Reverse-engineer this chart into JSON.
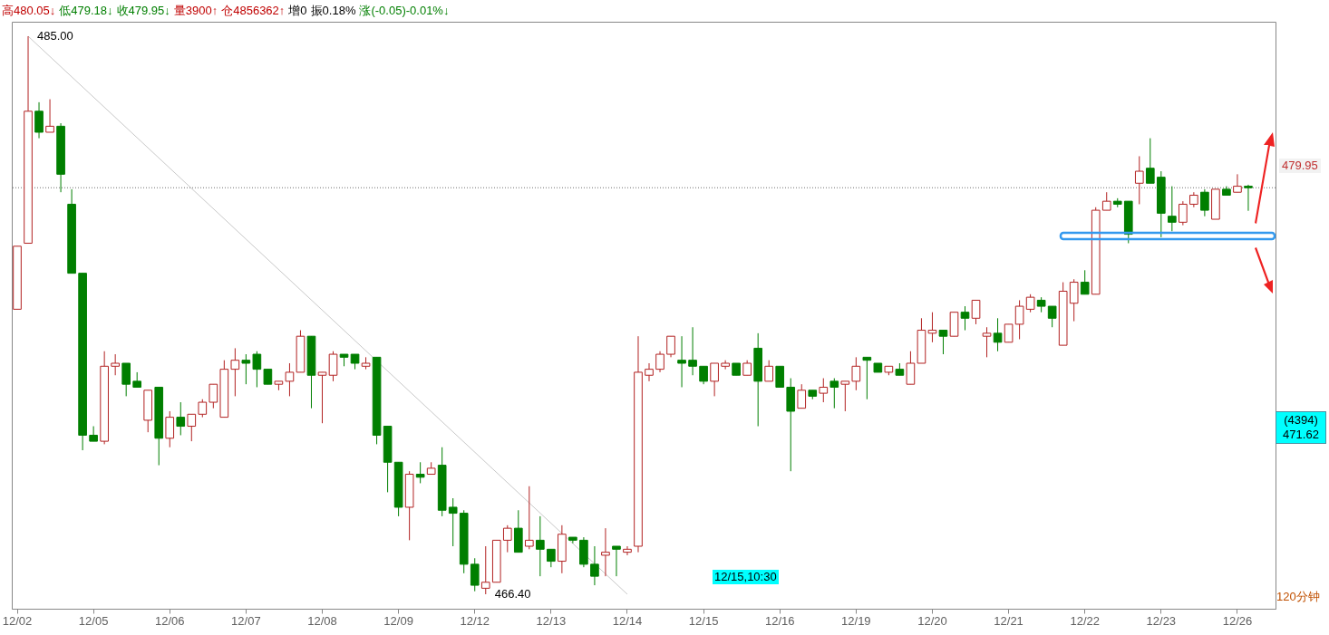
{
  "chart_data": {
    "type": "candlestick",
    "categories": [
      "12/02",
      null,
      null,
      null,
      null,
      null,
      null,
      "12/05",
      null,
      null,
      null,
      null,
      null,
      null,
      "12/06",
      null,
      null,
      null,
      null,
      null,
      null,
      "12/07",
      null,
      null,
      null,
      null,
      null,
      null,
      "12/08",
      null,
      null,
      null,
      null,
      null,
      null,
      "12/09",
      null,
      null,
      null,
      null,
      null,
      null,
      "12/12",
      null,
      null,
      null,
      null,
      null,
      null,
      "12/13",
      null,
      null,
      null,
      null,
      null,
      null,
      "12/14",
      null,
      null,
      null,
      null,
      null,
      null,
      "12/15",
      null,
      null,
      null,
      null,
      null,
      null,
      "12/16",
      null,
      null,
      null,
      null,
      null,
      null,
      "12/19",
      null,
      null,
      null,
      null,
      null,
      null,
      "12/20",
      null,
      null,
      null,
      null,
      null,
      null,
      "12/21",
      null,
      null,
      null,
      null,
      null,
      null,
      "12/22",
      null,
      null,
      null,
      null,
      null,
      null,
      "12/23",
      null,
      null,
      null,
      null,
      null,
      null,
      "12/26",
      null
    ],
    "ohlc": [
      [
        475.9,
        478.0,
        475.9,
        478.0
      ],
      [
        478.1,
        485.0,
        478.1,
        482.5
      ],
      [
        482.5,
        482.8,
        481.6,
        481.8
      ],
      [
        481.8,
        482.9,
        481.8,
        482.0
      ],
      [
        482.0,
        482.1,
        479.8,
        480.4
      ],
      [
        479.4,
        479.9,
        477.1,
        477.1
      ],
      [
        477.1,
        477.1,
        471.2,
        471.7
      ],
      [
        471.7,
        472.0,
        471.5,
        471.5
      ],
      [
        471.5,
        474.5,
        471.4,
        474.0
      ],
      [
        474.0,
        474.4,
        473.7,
        474.1
      ],
      [
        474.1,
        474.1,
        473.0,
        473.4
      ],
      [
        473.5,
        473.8,
        473.3,
        473.3
      ],
      [
        472.2,
        473.2,
        471.8,
        473.2
      ],
      [
        473.3,
        473.3,
        470.7,
        471.6
      ],
      [
        471.6,
        472.5,
        471.3,
        472.3
      ],
      [
        472.3,
        472.8,
        471.7,
        472.0
      ],
      [
        472.0,
        472.4,
        471.5,
        472.4
      ],
      [
        472.4,
        472.9,
        472.3,
        472.8
      ],
      [
        472.8,
        473.4,
        472.6,
        473.4
      ],
      [
        472.3,
        474.2,
        472.3,
        473.9
      ],
      [
        473.9,
        474.6,
        473.0,
        474.2
      ],
      [
        474.2,
        474.4,
        473.4,
        474.1
      ],
      [
        474.4,
        474.5,
        473.3,
        473.9
      ],
      [
        473.9,
        473.9,
        473.4,
        473.4
      ],
      [
        473.4,
        473.5,
        473.2,
        473.5
      ],
      [
        473.5,
        474.1,
        473.0,
        473.8
      ],
      [
        473.8,
        475.2,
        473.8,
        475.0
      ],
      [
        475.0,
        475.0,
        472.6,
        473.7
      ],
      [
        473.7,
        473.8,
        472.1,
        473.8
      ],
      [
        473.7,
        474.5,
        473.5,
        474.4
      ],
      [
        474.4,
        474.4,
        474.0,
        474.3
      ],
      [
        474.4,
        474.4,
        473.9,
        474.1
      ],
      [
        474.0,
        474.3,
        473.9,
        474.1
      ],
      [
        474.3,
        474.3,
        471.4,
        471.7
      ],
      [
        472.0,
        472.0,
        469.8,
        470.8
      ],
      [
        470.8,
        470.8,
        469.0,
        469.3
      ],
      [
        469.3,
        470.5,
        468.2,
        470.4
      ],
      [
        470.4,
        470.8,
        470.1,
        470.3
      ],
      [
        470.4,
        470.8,
        470.4,
        470.6
      ],
      [
        470.7,
        471.3,
        469.0,
        469.2
      ],
      [
        469.3,
        469.6,
        468.0,
        469.1
      ],
      [
        469.1,
        469.2,
        467.1,
        467.4
      ],
      [
        467.4,
        467.6,
        466.5,
        466.7
      ],
      [
        466.6,
        468.0,
        466.4,
        466.8
      ],
      [
        466.8,
        468.2,
        466.8,
        468.2
      ],
      [
        468.2,
        468.7,
        467.8,
        468.6
      ],
      [
        468.6,
        469.2,
        467.8,
        467.8
      ],
      [
        468.0,
        470.0,
        467.9,
        468.2
      ],
      [
        468.2,
        469.0,
        467.0,
        467.9
      ],
      [
        467.9,
        467.9,
        467.3,
        467.5
      ],
      [
        467.5,
        468.7,
        467.1,
        468.4
      ],
      [
        468.3,
        468.3,
        468.1,
        468.2
      ],
      [
        468.2,
        468.3,
        467.3,
        467.4
      ],
      [
        467.4,
        468.0,
        466.7,
        467.0
      ],
      [
        467.7,
        468.6,
        467.0,
        467.8
      ],
      [
        468.0,
        468.0,
        467.0,
        467.9
      ],
      [
        467.8,
        468.0,
        467.7,
        467.9
      ],
      [
        468.0,
        475.0,
        467.8,
        473.8
      ],
      [
        473.7,
        474.1,
        473.5,
        473.9
      ],
      [
        473.9,
        474.5,
        473.8,
        474.4
      ],
      [
        474.4,
        475.0,
        474.3,
        475.0
      ],
      [
        474.2,
        475.0,
        473.3,
        474.1
      ],
      [
        474.2,
        475.3,
        473.7,
        474.0
      ],
      [
        474.0,
        474.0,
        473.4,
        473.5
      ],
      [
        473.5,
        474.1,
        473.0,
        474.1
      ],
      [
        474.0,
        474.2,
        473.9,
        474.1
      ],
      [
        474.1,
        474.1,
        473.7,
        473.7
      ],
      [
        473.7,
        474.2,
        473.7,
        474.1
      ],
      [
        474.6,
        475.1,
        472.0,
        473.5
      ],
      [
        473.5,
        474.2,
        473.5,
        474.0
      ],
      [
        474.0,
        474.0,
        473.3,
        473.3
      ],
      [
        473.3,
        473.6,
        470.5,
        472.5
      ],
      [
        472.6,
        473.4,
        472.6,
        473.2
      ],
      [
        473.2,
        473.2,
        472.9,
        473.0
      ],
      [
        473.1,
        473.6,
        472.8,
        473.3
      ],
      [
        473.5,
        473.6,
        472.6,
        473.3
      ],
      [
        473.4,
        473.5,
        472.5,
        473.5
      ],
      [
        473.5,
        474.3,
        473.2,
        474.0
      ],
      [
        474.3,
        474.3,
        472.9,
        474.2
      ],
      [
        474.1,
        474.1,
        473.8,
        473.8
      ],
      [
        473.8,
        474.0,
        473.7,
        474.0
      ],
      [
        473.9,
        474.1,
        473.7,
        473.7
      ],
      [
        473.4,
        474.5,
        473.4,
        474.1
      ],
      [
        474.1,
        475.6,
        474.1,
        475.2
      ],
      [
        475.1,
        475.8,
        474.8,
        475.2
      ],
      [
        475.2,
        475.2,
        474.4,
        475.0
      ],
      [
        475.0,
        475.8,
        475.0,
        475.8
      ],
      [
        475.8,
        476.0,
        475.2,
        475.6
      ],
      [
        475.6,
        476.2,
        475.4,
        476.2
      ],
      [
        475.0,
        475.3,
        474.3,
        475.1
      ],
      [
        475.1,
        475.6,
        474.5,
        474.8
      ],
      [
        474.8,
        475.4,
        474.8,
        475.4
      ],
      [
        475.4,
        476.2,
        474.9,
        476.0
      ],
      [
        475.9,
        476.4,
        475.8,
        476.3
      ],
      [
        476.2,
        476.3,
        475.8,
        476.0
      ],
      [
        476.0,
        476.0,
        475.3,
        475.6
      ],
      [
        474.7,
        476.8,
        474.7,
        476.5
      ],
      [
        476.1,
        476.9,
        475.5,
        476.8
      ],
      [
        476.8,
        477.2,
        476.4,
        476.4
      ],
      [
        476.4,
        479.3,
        476.4,
        479.2
      ],
      [
        479.2,
        479.8,
        479.2,
        479.5
      ],
      [
        479.5,
        479.6,
        479.3,
        479.4
      ],
      [
        479.5,
        479.5,
        478.1,
        478.4
      ],
      [
        480.1,
        481.0,
        479.4,
        480.5
      ],
      [
        480.6,
        481.6,
        480.1,
        480.1
      ],
      [
        480.3,
        480.5,
        478.3,
        479.1
      ],
      [
        479.0,
        480.0,
        478.5,
        478.8
      ],
      [
        478.8,
        479.5,
        478.7,
        479.4
      ],
      [
        479.4,
        479.8,
        479.3,
        479.7
      ],
      [
        479.8,
        479.9,
        479.0,
        479.2
      ],
      [
        478.9,
        479.9,
        478.9,
        479.9
      ],
      [
        479.9,
        480.0,
        479.7,
        479.7
      ],
      [
        479.8,
        480.4,
        479.8,
        480.0
      ],
      [
        480.0,
        480.05,
        479.18,
        479.95
      ]
    ],
    "colors": [
      "#b22222",
      "#b22222",
      "#007f00",
      "#b22222",
      "#007f00",
      "#007f00",
      "#007f00",
      "#007f00",
      "#b22222",
      "#b22222",
      "#007f00",
      "#007f00",
      "#b22222",
      "#007f00",
      "#b22222",
      "#007f00",
      "#b22222",
      "#b22222",
      "#b22222",
      "#b22222",
      "#b22222",
      "#007f00",
      "#007f00",
      "#007f00",
      "#b22222",
      "#b22222",
      "#b22222",
      "#007f00",
      "#b22222",
      "#b22222",
      "#007f00",
      "#007f00",
      "#b22222",
      "#007f00",
      "#007f00",
      "#007f00",
      "#b22222",
      "#007f00",
      "#b22222",
      "#007f00",
      "#007f00",
      "#007f00",
      "#007f00",
      "#b22222",
      "#b22222",
      "#b22222",
      "#007f00",
      "#b22222",
      "#007f00",
      "#007f00",
      "#b22222",
      "#007f00",
      "#007f00",
      "#007f00",
      "#b22222",
      "#007f00",
      "#b22222",
      "#b22222",
      "#b22222",
      "#b22222",
      "#b22222",
      "#007f00",
      "#007f00",
      "#007f00",
      "#b22222",
      "#b22222",
      "#007f00",
      "#b22222",
      "#007f00",
      "#b22222",
      "#007f00",
      "#007f00",
      "#b22222",
      "#007f00",
      "#b22222",
      "#007f00",
      "#b22222",
      "#b22222",
      "#007f00",
      "#007f00",
      "#b22222",
      "#007f00",
      "#b22222",
      "#b22222",
      "#b22222",
      "#007f00",
      "#b22222",
      "#007f00",
      "#b22222",
      "#b22222",
      "#007f00",
      "#b22222",
      "#b22222",
      "#b22222",
      "#007f00",
      "#007f00",
      "#b22222",
      "#b22222",
      "#007f00",
      "#b22222",
      "#b22222",
      "#007f00",
      "#007f00",
      "#b22222",
      "#007f00",
      "#007f00",
      "#007f00",
      "#b22222",
      "#b22222",
      "#007f00",
      "#b22222",
      "#007f00",
      "#b22222",
      "#007f00"
    ],
    "series": [
      {
        "type": "line",
        "color": "#c8c8c8",
        "values": [
          null,
          485.0,
          null,
          null,
          null,
          null,
          null,
          null,
          null,
          null,
          null,
          null,
          null,
          null,
          null,
          null,
          null,
          null,
          null,
          null,
          null,
          null,
          null,
          null,
          null,
          null,
          null,
          null,
          null,
          null,
          null,
          null,
          null,
          null,
          null,
          null,
          null,
          null,
          null,
          null,
          null,
          null,
          null,
          null,
          null,
          null,
          null,
          null,
          null,
          null,
          null,
          null,
          null,
          null,
          null,
          null,
          466.4,
          null,
          null,
          null,
          null,
          null,
          null,
          null,
          null,
          null,
          null,
          null,
          null,
          null,
          null,
          null,
          null,
          null,
          null,
          null,
          null,
          null,
          null,
          null,
          null,
          null,
          null,
          null,
          null,
          null,
          null,
          null,
          null,
          null,
          null,
          null,
          null,
          null,
          null,
          null,
          null,
          null,
          null,
          null,
          null,
          null,
          null,
          null,
          null,
          null,
          null,
          null,
          null,
          null,
          null,
          null,
          null,
          null
        ]
      }
    ],
    "ref_lines": [
      {
        "axis": "y",
        "value": 479.95,
        "label": "479.95",
        "color": "#707070",
        "line_style": "dotted"
      }
    ],
    "annotations": [
      "高480.05↓",
      "低479.18↓",
      "收479.95↓",
      "量3900↑",
      "仓4856362↑",
      "增0",
      "振0.18%",
      "涨(-0.05)-0.01%↓",
      "485.00",
      "466.40",
      "(4394)",
      "471.62",
      "12/15,10:30",
      "120分钟"
    ]
  }
}
